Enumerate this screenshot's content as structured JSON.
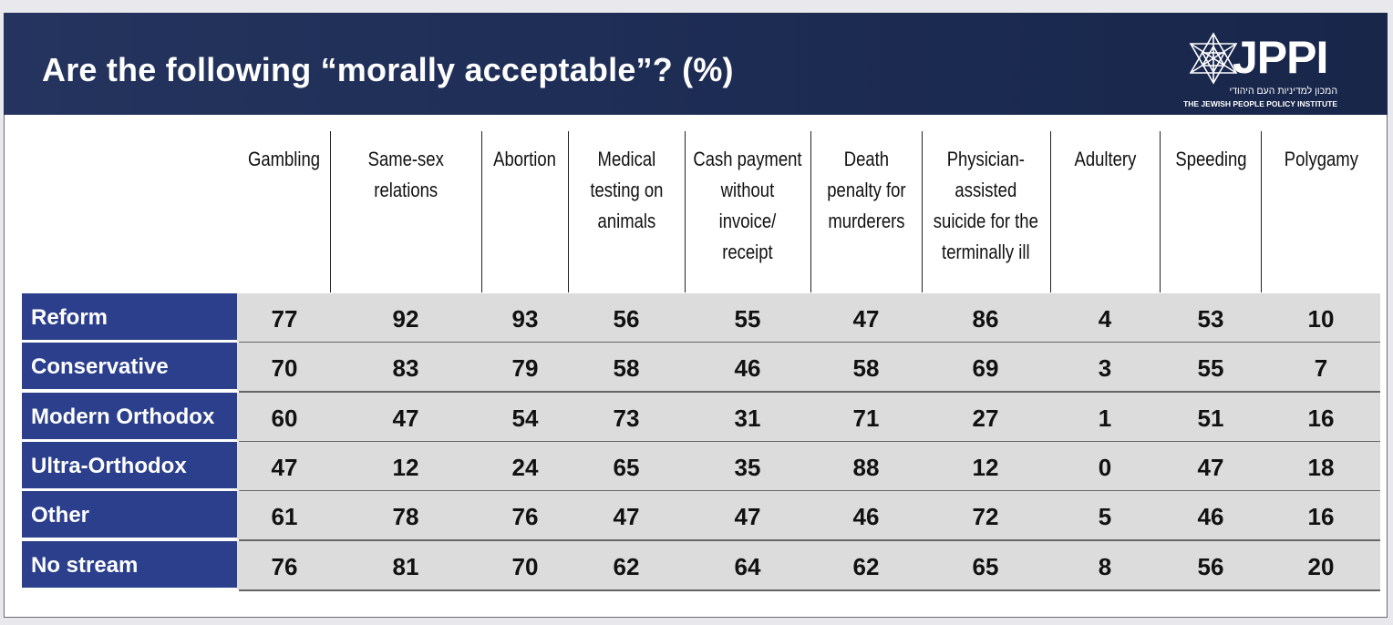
{
  "header": {
    "title": "Are the following “morally acceptable”? (%)",
    "logo_text": "JPPI",
    "logo_hebrew": "המכון למדיניות העם היהודי",
    "logo_english": "THE JEWISH PEOPLE POLICY INSTITUTE"
  },
  "colors": {
    "header_bg": "#1c2b52",
    "row_label_bg": "#2b3f8c",
    "row_bg": "#dcdcdc"
  },
  "chart_data": {
    "type": "table",
    "title": "Are the following “morally acceptable”? (%)",
    "columns": [
      [
        "Gambling"
      ],
      [
        "Same-sex",
        "relations"
      ],
      [
        "Abortion"
      ],
      [
        "Medical",
        "testing on",
        "animals"
      ],
      [
        "Cash payment",
        "without",
        "invoice/",
        "receipt"
      ],
      [
        "Death",
        "penalty for",
        "murderers"
      ],
      [
        "Physician-",
        "assisted",
        "suicide for the",
        "terminally ill"
      ],
      [
        "Adultery"
      ],
      [
        "Speeding"
      ],
      [
        "Polygamy"
      ]
    ],
    "rows": [
      {
        "label": "Reform",
        "values": [
          "77",
          "92",
          "93",
          "56",
          "55",
          "47",
          "86",
          "4",
          "53",
          "10"
        ]
      },
      {
        "label": "Conservative",
        "values": [
          "70",
          "83",
          "79",
          "58",
          "46",
          "58",
          "69",
          "3",
          "55",
          "7"
        ]
      },
      {
        "label": "Modern Orthodox",
        "values": [
          "60",
          "47",
          "54",
          "73",
          "31",
          "71",
          "27",
          "1",
          "51",
          "16"
        ]
      },
      {
        "label": "Ultra-Orthodox",
        "values": [
          "47",
          "12",
          "24",
          "65",
          "35",
          "88",
          "12",
          "0",
          "47",
          "18"
        ]
      },
      {
        "label": "Other",
        "values": [
          "61",
          "78",
          "76",
          "47",
          "47",
          "46",
          "72",
          "5",
          "46",
          "16"
        ]
      },
      {
        "label": "No stream",
        "values": [
          "76",
          "81",
          "70",
          "62",
          "64",
          "62",
          "65",
          "8",
          "56",
          "20"
        ]
      }
    ]
  }
}
